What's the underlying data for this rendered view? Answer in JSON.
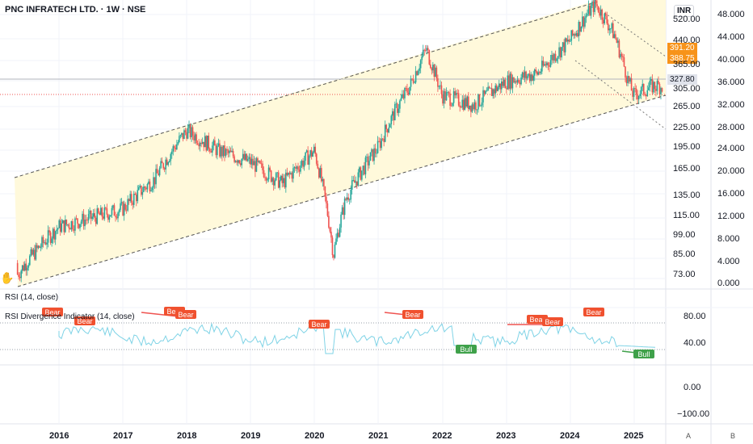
{
  "header": {
    "title": "PNC INFRATECH LTD. · 1W · NSE",
    "currency": "INR"
  },
  "price_tags": [
    {
      "value": "391.20",
      "color": "#f7931a"
    },
    {
      "value": "388.75",
      "color": "#f7931a"
    },
    {
      "value": "327.80",
      "color": "#e0e3eb",
      "text_color": "#131722"
    }
  ],
  "left_axis_labels": [
    "520.00",
    "440.00",
    "365.00",
    "305.00",
    "265.00",
    "225.00",
    "195.00",
    "165.00",
    "135.00",
    "115.00",
    "99.00",
    "85.00",
    "73.00"
  ],
  "right_axis_labels": [
    "48.000",
    "44.000",
    "40.000",
    "36.000",
    "32.000",
    "28.000",
    "24.000",
    "20.000",
    "16.000",
    "12.000",
    "8.000",
    "4.000",
    "0.000"
  ],
  "rsi": {
    "label": "RSI (14, close)",
    "div_label": "RSI Divergence Indicator (14, close)",
    "axis_labels": [
      "80.00",
      "40.00",
      "0.00",
      "−100.00"
    ],
    "bear_label": "Bear",
    "bull_label": "Bull"
  },
  "x_axis": {
    "years": [
      "2016",
      "2017",
      "2018",
      "2019",
      "2020",
      "2021",
      "2022",
      "2023",
      "2024",
      "2025"
    ],
    "buttons": [
      "A",
      "B"
    ]
  },
  "colors": {
    "channel_fill": "#fff9db",
    "up": "#26a69a",
    "down": "#ef5350",
    "rsi_line": "#7fd3e6",
    "bear": "#f0512f",
    "bull": "#3fa14a"
  },
  "chart_data": {
    "type": "candlestick",
    "title": "PNC INFRATECH LTD. · 1W · NSE",
    "x": [
      "2016",
      "2017",
      "2018",
      "2019",
      "2020",
      "2021",
      "2022",
      "2023",
      "2024",
      "2025"
    ],
    "series": [
      {
        "name": "",
        "values": [
          {
            "x": "2016",
            "close": 105
          },
          {
            "x": "2016.5",
            "close": 112
          },
          {
            "x": "2017",
            "close": 120
          },
          {
            "x": "2017.5",
            "close": 150
          },
          {
            "x": "2018",
            "close": 215
          },
          {
            "x": "2018.5",
            "close": 185
          },
          {
            "x": "2019",
            "close": 170
          },
          {
            "x": "2019.5",
            "close": 145
          },
          {
            "x": "2020",
            "close": 185
          },
          {
            "x": "2020.3",
            "close": 85
          },
          {
            "x": "2020.5",
            "close": 130
          },
          {
            "x": "2021",
            "close": 190
          },
          {
            "x": "2021.5",
            "close": 300
          },
          {
            "x": "2021.75",
            "close": 395
          },
          {
            "x": "2022",
            "close": 280
          },
          {
            "x": "2022.5",
            "close": 260
          },
          {
            "x": "2023",
            "close": 310
          },
          {
            "x": "2023.5",
            "close": 330
          },
          {
            "x": "2024",
            "close": 420
          },
          {
            "x": "2024.4",
            "close": 555
          },
          {
            "x": "2024.7",
            "close": 440
          },
          {
            "x": "2024.9",
            "close": 320
          },
          {
            "x": "2025",
            "close": 280
          },
          {
            "x": "2025.3",
            "close": 300
          }
        ]
      }
    ],
    "indicator": {
      "name": "RSI (14, close)",
      "levels": [
        70,
        30
      ]
    }
  }
}
